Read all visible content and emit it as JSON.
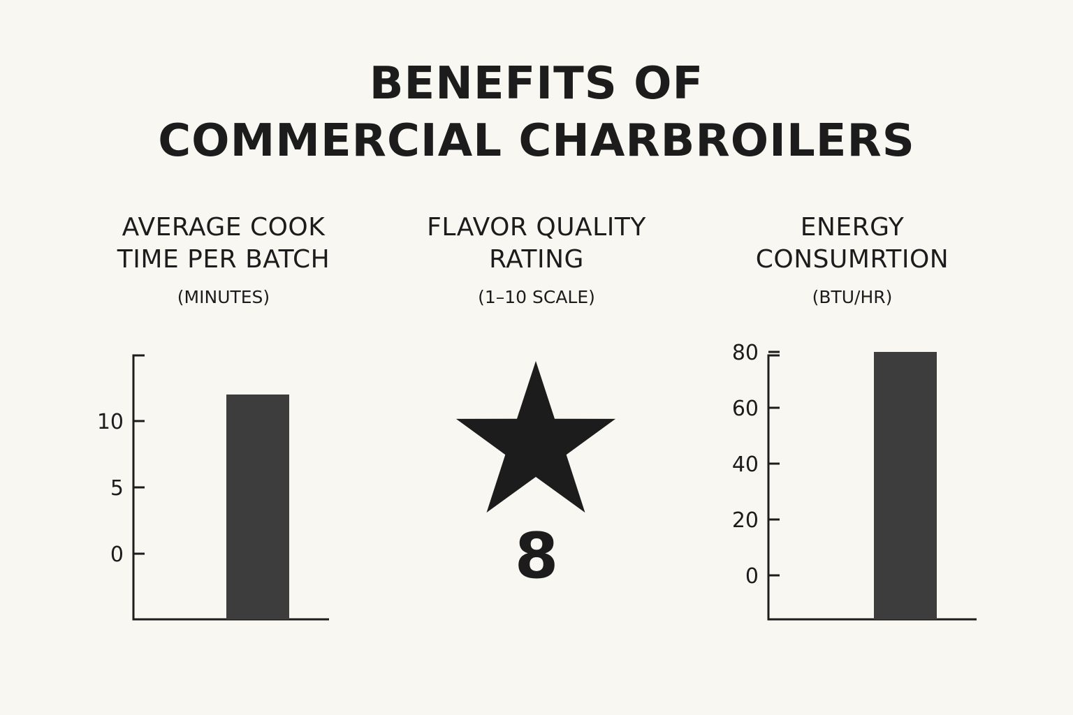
{
  "title": {
    "line1": "BENEFITS OF",
    "line2": "COMMERCIAL CHARBROILERS"
  },
  "panels": {
    "cook_time": {
      "heading1": "AVERAGE COOK",
      "heading2": "TIME PER BATCH",
      "unit": "(MINUTES)"
    },
    "flavor": {
      "heading1": "FLAVOR QUALITY",
      "heading2": "RATING",
      "unit": "(1–10 SCALE)",
      "value": "8",
      "icon": "star-icon"
    },
    "energy": {
      "heading1": "ENERGY",
      "heading2": "CONSUMRTION",
      "unit": "(BTU/HR)"
    }
  },
  "colors": {
    "bar": "#3d3d3d",
    "axis": "#1c1c1c",
    "star": "#1c1c1c",
    "background": "#f8f7f2"
  },
  "chart_data": [
    {
      "type": "bar",
      "categories": [
        ""
      ],
      "values": [
        12
      ],
      "ylim": [
        0,
        15
      ],
      "y_ticks": [
        0,
        5,
        10
      ],
      "tick_labels": [
        "0",
        "5",
        "10"
      ],
      "grid": false
    },
    {
      "type": "table",
      "value": 8,
      "scale": [
        1,
        10
      ]
    },
    {
      "type": "bar",
      "categories": [
        ""
      ],
      "values": [
        80
      ],
      "ylim": [
        0,
        80
      ],
      "y_ticks": [
        0,
        20,
        40,
        60,
        80
      ],
      "tick_labels": [
        "0",
        "20",
        "40",
        "60",
        "80"
      ],
      "grid": false
    }
  ]
}
